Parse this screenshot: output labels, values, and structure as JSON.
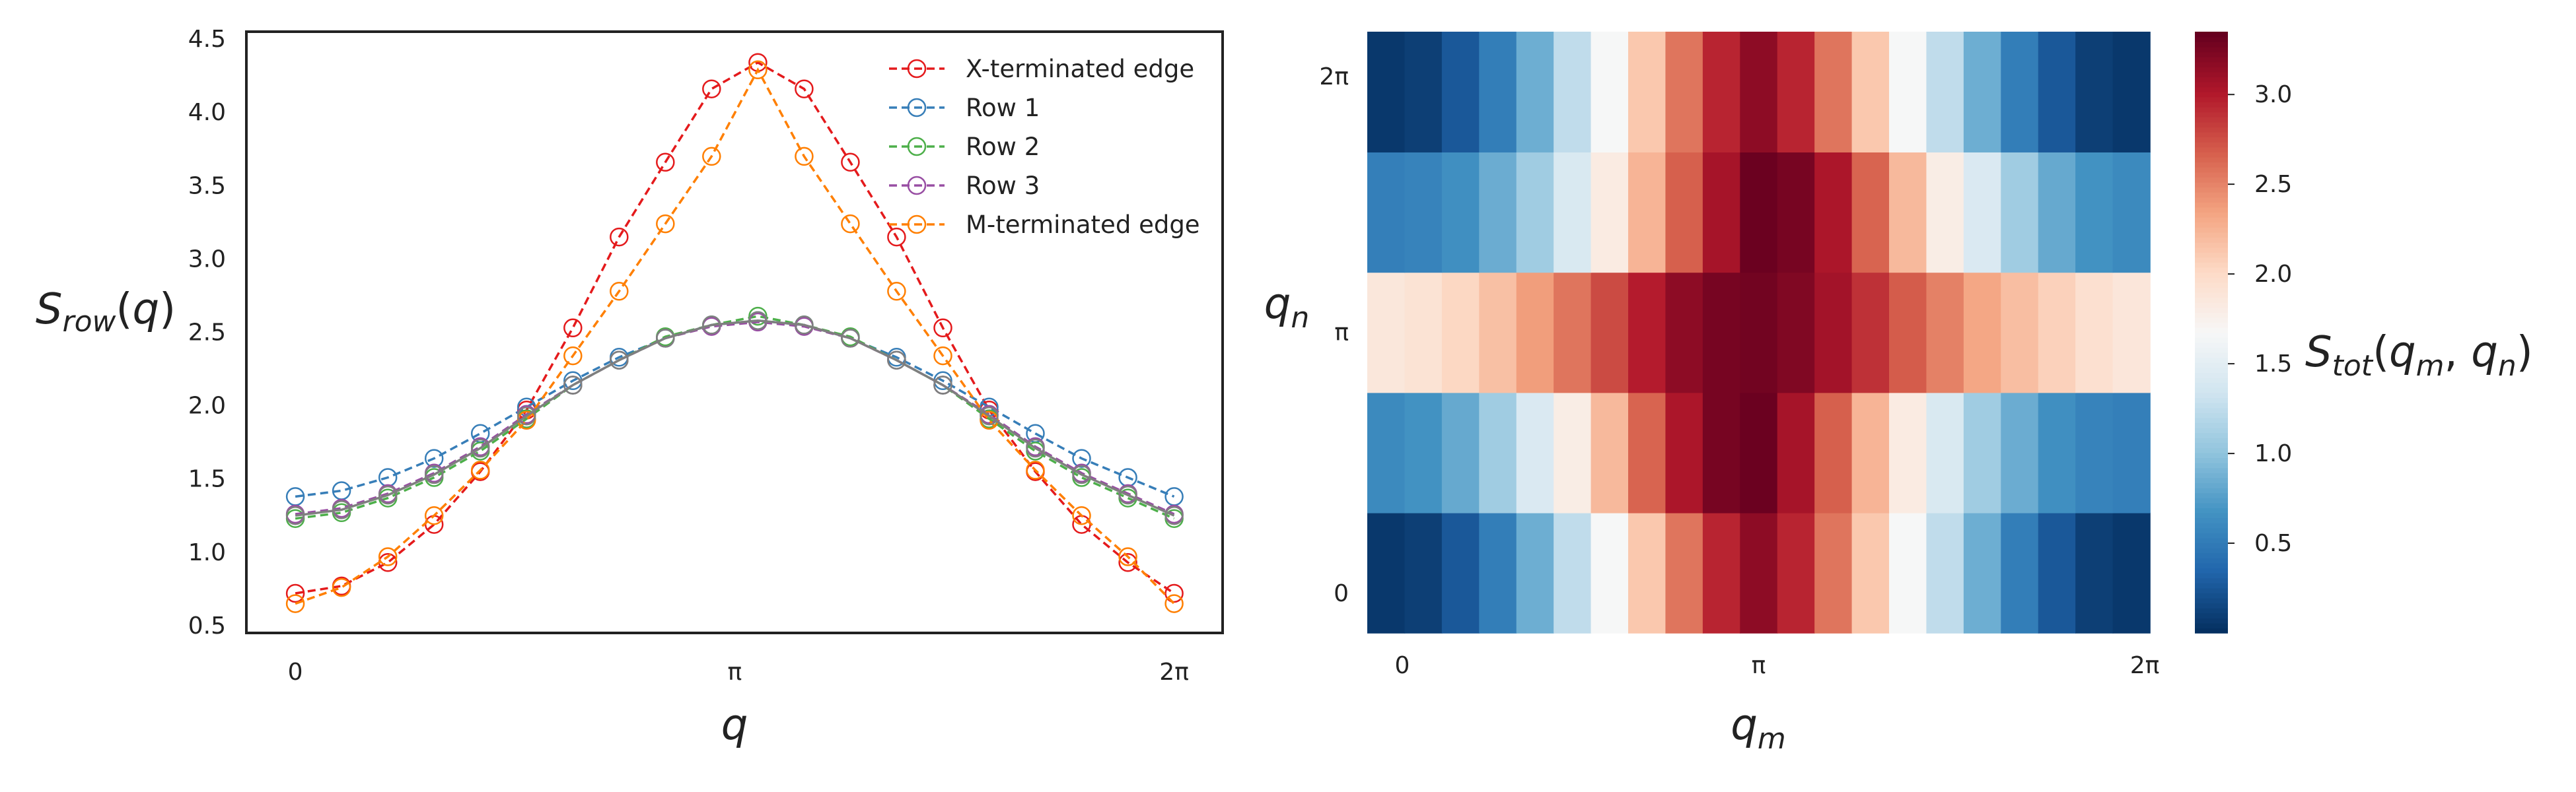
{
  "chart_data": [
    {
      "type": "line",
      "ylabel": "S_row(q)",
      "xlabel": "q",
      "xlim": [
        -0.35,
        6.63
      ],
      "ylim": [
        0.45,
        4.55
      ],
      "x_tick_values": [
        0,
        3.14159,
        6.28318
      ],
      "x_tick_labels": [
        "0",
        "π",
        "2π"
      ],
      "y_tick_values": [
        0.5,
        1.0,
        1.5,
        2.0,
        2.5,
        3.0,
        3.5,
        4.0,
        4.5
      ],
      "y_tick_labels": [
        "0.5",
        "1.0",
        "1.5",
        "2.0",
        "2.5",
        "3.0",
        "3.5",
        "4.0",
        "4.5"
      ],
      "grid": false,
      "legend_position": "top-right",
      "x": [
        0,
        0.3307,
        0.6614,
        0.9921,
        1.3228,
        1.6535,
        1.9842,
        2.3149,
        2.6456,
        2.9763,
        3.307,
        3.6377,
        3.9684,
        4.2991,
        4.6298,
        4.9605,
        5.2912,
        5.6219,
        5.9526,
        6.2832
      ],
      "series": [
        {
          "name": "X-terminated edge",
          "color": "#e41a1c",
          "values": [
            0.72,
            0.77,
            0.93,
            1.19,
            1.55,
            1.97,
            2.53,
            3.15,
            3.66,
            4.16,
            4.34,
            4.16,
            3.66,
            3.15,
            2.53,
            1.97,
            1.55,
            1.19,
            0.93,
            0.72
          ]
        },
        {
          "name": "Row 1",
          "color": "#377eb8",
          "values": [
            1.38,
            1.42,
            1.51,
            1.64,
            1.81,
            1.99,
            2.17,
            2.33,
            2.46,
            2.55,
            2.58,
            2.55,
            2.46,
            2.33,
            2.17,
            1.99,
            1.81,
            1.64,
            1.51,
            1.38
          ]
        },
        {
          "name": "Row 2",
          "color": "#4daf4a",
          "values": [
            1.23,
            1.27,
            1.37,
            1.51,
            1.69,
            1.91,
            2.14,
            2.31,
            2.47,
            2.55,
            2.61,
            2.55,
            2.47,
            2.31,
            2.14,
            1.91,
            1.69,
            1.51,
            1.37,
            1.23
          ]
        },
        {
          "name": "Row 3",
          "color": "#984ea3",
          "values": [
            1.26,
            1.3,
            1.4,
            1.54,
            1.72,
            1.94,
            2.14,
            2.31,
            2.46,
            2.54,
            2.57,
            2.54,
            2.46,
            2.31,
            2.14,
            1.94,
            1.72,
            1.54,
            1.4,
            1.26
          ]
        },
        {
          "name": "M-terminated edge",
          "color": "#ff7f00",
          "values": [
            0.65,
            0.76,
            0.97,
            1.25,
            1.56,
            1.9,
            2.34,
            2.78,
            3.24,
            3.7,
            4.29,
            3.7,
            3.24,
            2.78,
            2.34,
            1.9,
            1.56,
            1.25,
            0.97,
            0.65
          ]
        }
      ],
      "extra_series": [
        {
          "color": "#7f7f7f",
          "values": [
            1.25,
            1.29,
            1.39,
            1.53,
            1.71,
            1.93,
            2.14,
            2.31,
            2.46,
            2.55,
            2.58,
            2.55,
            2.46,
            2.31,
            2.14,
            1.93,
            1.71,
            1.53,
            1.39,
            1.25
          ]
        }
      ]
    },
    {
      "type": "heatmap",
      "xlabel": "q_m",
      "ylabel": "q_n",
      "colorbar_label": "S_tot(q_m, q_n)",
      "colormap": "RdBu_r",
      "vmin": 0.0,
      "vmax": 3.35,
      "x_tick_labels": [
        "0",
        "π",
        "2π"
      ],
      "y_tick_labels": [
        "0",
        "π",
        "2π"
      ],
      "colorbar_tick_values": [
        0.5,
        1.0,
        1.5,
        2.0,
        2.5,
        3.0
      ],
      "colorbar_tick_labels": [
        "0.5",
        "1.0",
        "1.5",
        "2.0",
        "2.5",
        "3.0"
      ],
      "values": [
        [
          0.05,
          0.09,
          0.25,
          0.51,
          0.85,
          1.25,
          1.67,
          2.13,
          2.58,
          2.96,
          3.18,
          2.96,
          2.58,
          2.13,
          1.67,
          1.25,
          0.85,
          0.51,
          0.25,
          0.09,
          0.05
        ],
        [
          0.6,
          0.66,
          0.82,
          1.08,
          1.42,
          1.8,
          2.22,
          2.66,
          3.04,
          3.28,
          3.33,
          3.07,
          2.68,
          2.25,
          1.82,
          1.41,
          1.08,
          0.84,
          0.64,
          0.55,
          0.52
        ],
        [
          1.87,
          1.92,
          2.03,
          2.18,
          2.38,
          2.58,
          2.78,
          3.0,
          3.18,
          3.28,
          3.3,
          3.24,
          3.08,
          2.9,
          2.7,
          2.52,
          2.33,
          2.19,
          2.07,
          1.95,
          1.88
        ],
        [
          0.52,
          0.55,
          0.64,
          0.84,
          1.08,
          1.41,
          1.82,
          2.25,
          2.68,
          3.07,
          3.33,
          3.28,
          3.04,
          2.66,
          2.22,
          1.8,
          1.42,
          1.08,
          0.82,
          0.66,
          0.6
        ],
        [
          0.05,
          0.09,
          0.25,
          0.51,
          0.85,
          1.25,
          1.67,
          2.13,
          2.58,
          2.96,
          3.18,
          2.96,
          2.58,
          2.13,
          1.67,
          1.25,
          0.85,
          0.51,
          0.25,
          0.09,
          0.05
        ]
      ]
    }
  ]
}
